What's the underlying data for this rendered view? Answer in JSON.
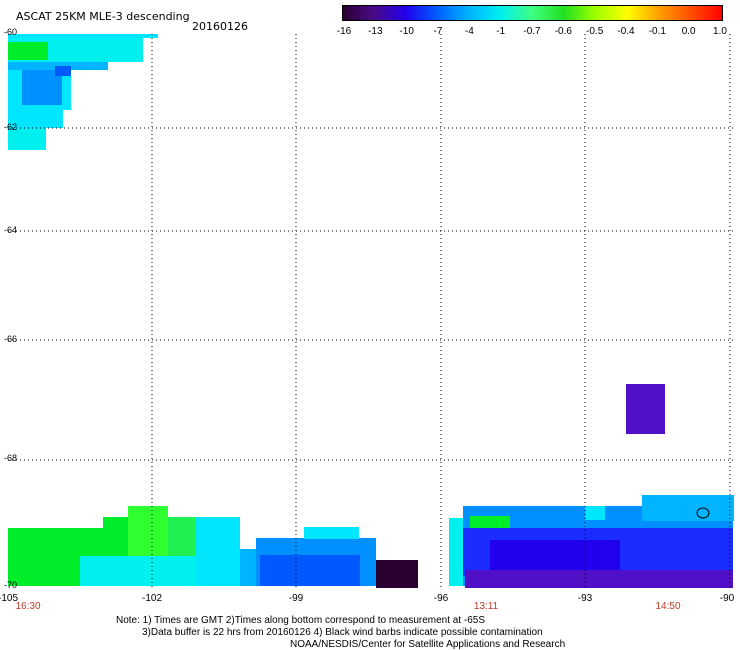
{
  "header": {
    "title": "ASCAT 25KM MLE-3 descending",
    "date": "20160126"
  },
  "colorbar": {
    "labels": [
      "-16",
      "-13",
      "-10",
      "-7",
      "-4",
      "-1",
      "-0.7",
      "-0.6",
      "-0.5",
      "-0.4",
      "-0.1",
      "0.0",
      "1.0"
    ],
    "gradient_colors": [
      "#2a0030",
      "#4a0a8a",
      "#2200ee",
      "#0060ff",
      "#00b4ff",
      "#00f0f0",
      "#40ff80",
      "#20e020",
      "#a0ff00",
      "#ffff00",
      "#ffa000",
      "#ff5000",
      "#ff0000"
    ]
  },
  "axes": {
    "lat_labels": [
      "-60",
      "-62",
      "-64",
      "-66",
      "-68",
      "-70"
    ],
    "lon_labels": [
      "-105",
      "-102",
      "-99",
      "-96",
      "-93",
      "-90"
    ],
    "time_labels": [
      "16:30",
      "13:11",
      "14:50"
    ]
  },
  "palette": {
    "green": "#00ee2a",
    "light_green": "#20f050",
    "lime": "#30ff30",
    "aqua": "#00f0f0",
    "cyan": "#00e6ff",
    "sky": "#00b4ff",
    "light_blue": "#0090ff",
    "mid_blue": "#0058ff",
    "blue": "#1a2cff",
    "deep_blue": "#2200ee",
    "purple": "#5010c8",
    "dark": "#2a0030"
  },
  "notes": {
    "line1": "Note: 1) Times are GMT 2)Times along bottom correspond to measurement at -65S",
    "line2": "3)Data buffer is 22 hrs from 20160126 4) Black wind barbs indicate possible contamination",
    "line3": "NOAA/NESDIS/Center for Satellite Applications and Research"
  }
}
